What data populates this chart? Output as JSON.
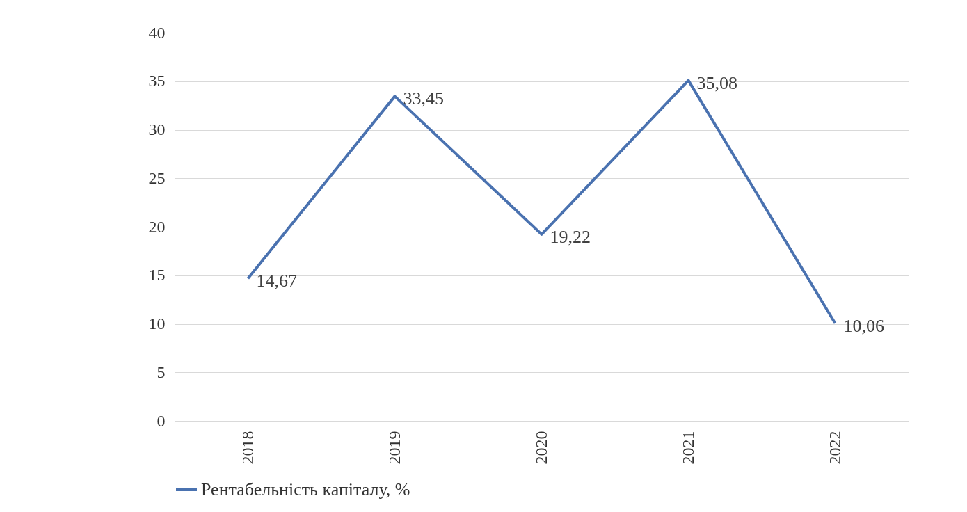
{
  "chart_data": {
    "type": "line",
    "categories": [
      "2018",
      "2019",
      "2020",
      "2021",
      "2022"
    ],
    "series": [
      {
        "name": "Рентабельність капіталу, %",
        "color": "#4a72b0",
        "values": [
          14.67,
          33.45,
          19.22,
          35.08,
          10.06
        ],
        "value_labels": [
          "14,67",
          "33,45",
          "19,22",
          "35,08",
          "10,06"
        ]
      }
    ],
    "ylim": [
      0,
      40
    ],
    "yticks": [
      0,
      5,
      10,
      15,
      20,
      25,
      30,
      35,
      40
    ],
    "grid": "y",
    "legend": "bottom",
    "marker": "none",
    "line_style": "solid"
  }
}
